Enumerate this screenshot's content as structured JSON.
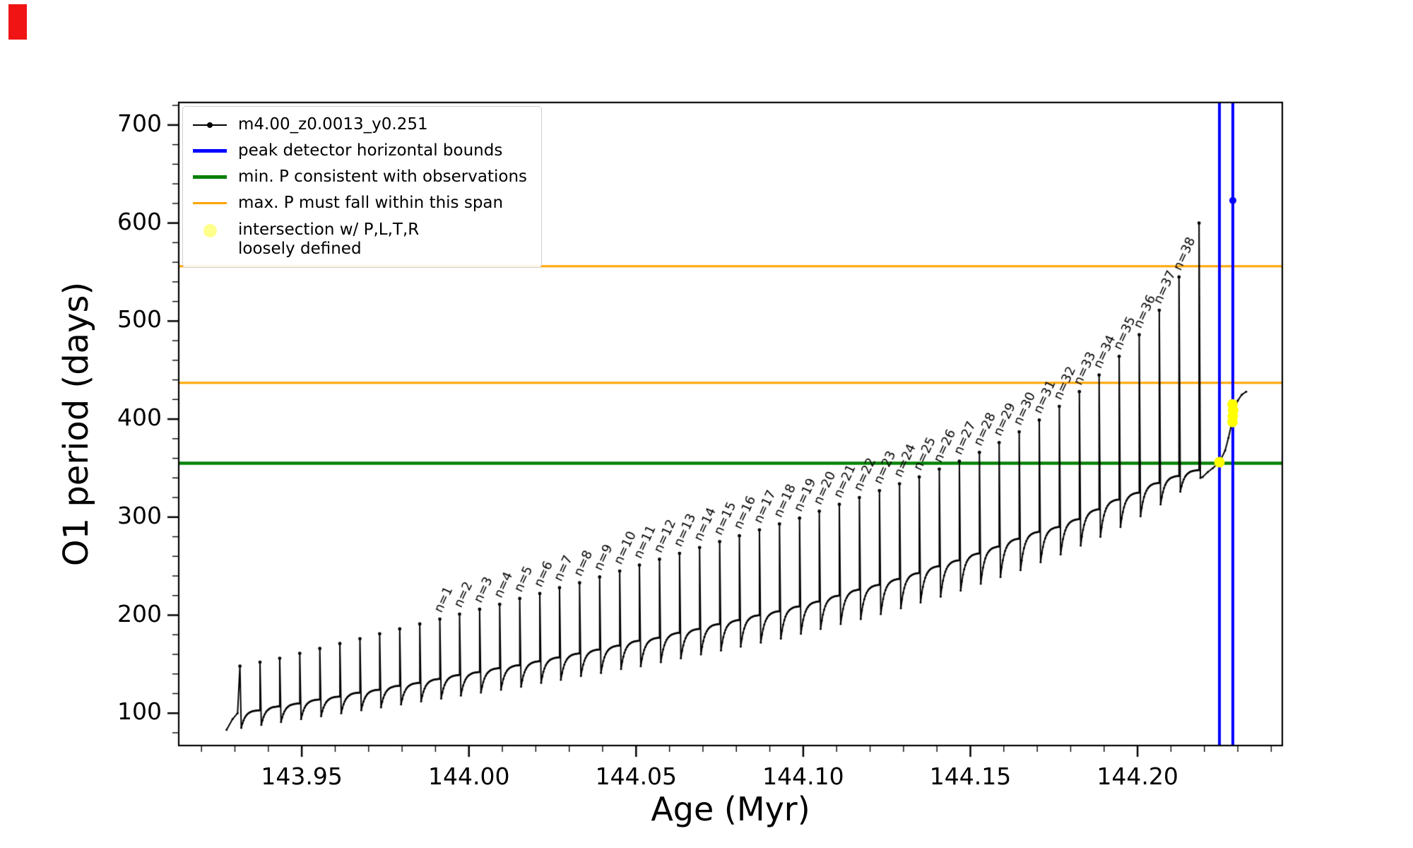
{
  "axes": {
    "xlabel": "Age (Myr)",
    "ylabel": "O1 period (days)",
    "xticks": [
      143.95,
      144.0,
      144.05,
      144.1,
      144.15,
      144.2
    ],
    "xtick_labels": [
      "143.95",
      "144.00",
      "144.05",
      "144.10",
      "144.15",
      "144.20"
    ],
    "yticks": [
      100,
      200,
      300,
      400,
      500,
      600,
      700
    ],
    "ytick_labels": [
      "100",
      "200",
      "300",
      "400",
      "500",
      "600",
      "700"
    ],
    "x_minor_step": 0.01,
    "y_minor_step": 20
  },
  "legend": {
    "entries": [
      {
        "label": "m4.00_z0.0013_y0.251",
        "color": "#000000",
        "swatch": "line-dot",
        "lw": 2
      },
      {
        "label": "peak detector horizontal bounds",
        "color": "#0000ff",
        "swatch": "line",
        "lw": 5
      },
      {
        "label": "min. P consistent with observations",
        "color": "#008000",
        "swatch": "line",
        "lw": 5
      },
      {
        "label": "max. P must fall within this span",
        "color": "#ffa500",
        "swatch": "line",
        "lw": 3
      },
      {
        "label": "intersection w/ P,L,T,R\nloosely defined",
        "color": "#ffff00",
        "swatch": "dot",
        "lw": 0
      }
    ]
  },
  "decorations": {
    "red_marker_color": "#f01414"
  },
  "chart_data": {
    "type": "line",
    "title": "",
    "xlabel": "Age (Myr)",
    "ylabel": "O1 period (days)",
    "xlim": [
      143.9132,
      144.2433
    ],
    "ylim": [
      67,
      723
    ],
    "series": [
      {
        "name": "m4.00_z0.0013_y0.251",
        "color": "#000000",
        "pulse_x": [
          143.9315,
          143.9375,
          143.9434,
          143.9494,
          143.9554,
          143.9614,
          143.9674,
          143.9733,
          143.9793,
          143.9853,
          143.9913,
          143.9972,
          144.0032,
          144.0092,
          144.0152,
          144.0212,
          144.0271,
          144.0331,
          144.0391,
          144.0451,
          144.051,
          144.057,
          144.063,
          144.069,
          144.075,
          144.0809,
          144.0869,
          144.0929,
          144.0989,
          144.1048,
          144.1108,
          144.1168,
          144.1228,
          144.1288,
          144.1347,
          144.1407,
          144.1467,
          144.1527,
          144.1586,
          144.1646,
          144.1706,
          144.1766,
          144.1826,
          144.1885,
          144.1945,
          144.2005,
          144.2065,
          144.2124,
          144.2184
        ],
        "pulse_peak": [
          148,
          152,
          156,
          161,
          166,
          171,
          176,
          181,
          186,
          191,
          196,
          201,
          206,
          211,
          217,
          222,
          228,
          233,
          239,
          245,
          251,
          257,
          263,
          269,
          275,
          281,
          287,
          293,
          299,
          306,
          313,
          320,
          327,
          334,
          341,
          349,
          357,
          366,
          376,
          387,
          399,
          413,
          428,
          445,
          464,
          486,
          511,
          545,
          600
        ],
        "pulse_trough": [
          85,
          88,
          91,
          94,
          97,
          100,
          103,
          106,
          109,
          112,
          115,
          118,
          121,
          124,
          127,
          131,
          134,
          138,
          141,
          145,
          148,
          152,
          156,
          160,
          164,
          168,
          172,
          176,
          181,
          186,
          191,
          196,
          201,
          207,
          213,
          219,
          225,
          232,
          239,
          246,
          254,
          262,
          271,
          280,
          290,
          301,
          313,
          326,
          340
        ],
        "pulse_plateau": [
          103,
          107,
          110,
          114,
          117,
          121,
          124,
          128,
          131,
          135,
          139,
          142,
          146,
          149,
          153,
          157,
          161,
          165,
          169,
          174,
          177,
          182,
          186,
          191,
          195,
          200,
          204,
          209,
          214,
          220,
          226,
          231,
          237,
          243,
          250,
          256,
          263,
          270,
          278,
          285,
          290,
          298,
          308,
          318,
          325,
          335,
          342,
          348,
          345
        ],
        "lead_in": [
          [
            143.9275,
            83
          ],
          [
            143.9293,
            94
          ],
          [
            143.9308,
            100
          ]
        ],
        "tail": [
          [
            144.2195,
            341
          ],
          [
            144.221,
            346
          ],
          [
            144.2225,
            350
          ],
          [
            144.2245,
            356
          ],
          [
            144.2262,
            368
          ],
          [
            144.2272,
            381
          ],
          [
            144.228,
            393
          ],
          [
            144.2285,
            403
          ],
          [
            144.2292,
            412
          ],
          [
            144.23,
            419
          ],
          [
            144.2312,
            425
          ],
          [
            144.2325,
            428
          ]
        ]
      }
    ],
    "peak_labels": {
      "first_pulse_index": 10,
      "labels": [
        "n=1",
        "n=2",
        "n=3",
        "n=4",
        "n=5",
        "n=6",
        "n=7",
        "n=8",
        "n=9",
        "n=10",
        "n=11",
        "n=12",
        "n=13",
        "n=14",
        "n=15",
        "n=16",
        "n=17",
        "n=18",
        "n=19",
        "n=20",
        "n=21",
        "n=22",
        "n=23",
        "n=24",
        "n=25",
        "n=26",
        "n=27",
        "n=28",
        "n=29",
        "n=30",
        "n=31",
        "n=32",
        "n=33",
        "n=34",
        "n=35",
        "n=36",
        "n=37",
        "n=38"
      ]
    },
    "hlines": [
      {
        "y": 355,
        "color": "#008000",
        "lw": 4.5
      },
      {
        "y": 437,
        "color": "#ffa500",
        "lw": 3
      },
      {
        "y": 556,
        "color": "#ffa500",
        "lw": 3
      }
    ],
    "vlines": [
      {
        "x": 144.2245,
        "color": "#0000ff",
        "lw": 4
      },
      {
        "x": 144.2285,
        "color": "#0000ff",
        "lw": 4
      }
    ],
    "yellow_points": [
      [
        144.2245,
        356
      ],
      [
        144.2284,
        397
      ],
      [
        144.2285,
        403
      ],
      [
        144.2286,
        409
      ],
      [
        144.2284,
        415
      ]
    ],
    "blue_point": [
      144.2285,
      623
    ]
  }
}
